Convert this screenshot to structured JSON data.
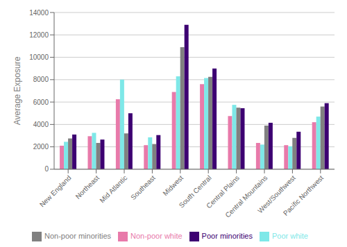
{
  "chart_data": {
    "type": "bar",
    "ylabel": "Average Exposure",
    "categories": [
      "New England",
      "Northeast",
      "Mid Atlantic",
      "Southeast",
      "Midwest",
      "South Central",
      "Central Plains",
      "Central Mountains",
      "West/Southwest",
      "Pacific Northwest"
    ],
    "series": [
      {
        "name": "Non-poor white",
        "color": "#e87aaa",
        "values": [
          2100,
          2950,
          6250,
          2150,
          6900,
          7600,
          4750,
          2350,
          2150,
          4200
        ]
      },
      {
        "name": "Poor white",
        "color": "#7ee8e8",
        "values": [
          2450,
          3250,
          8000,
          2850,
          8300,
          8150,
          5750,
          2200,
          2050,
          4700
        ]
      },
      {
        "name": "Non-poor minorities",
        "color": "#808080",
        "values": [
          2750,
          2350,
          3200,
          2250,
          10900,
          8250,
          5500,
          3900,
          2800,
          5600
        ]
      },
      {
        "name": "Poor minorities",
        "color": "#3d0072",
        "values": [
          3100,
          2650,
          5000,
          3050,
          12900,
          9000,
          5450,
          4150,
          3350,
          5900
        ]
      }
    ],
    "ylim": [
      0,
      14000
    ],
    "yticks": [
      0,
      2000,
      4000,
      6000,
      8000,
      10000,
      12000,
      14000
    ],
    "grid": true,
    "legend": "bottom"
  }
}
